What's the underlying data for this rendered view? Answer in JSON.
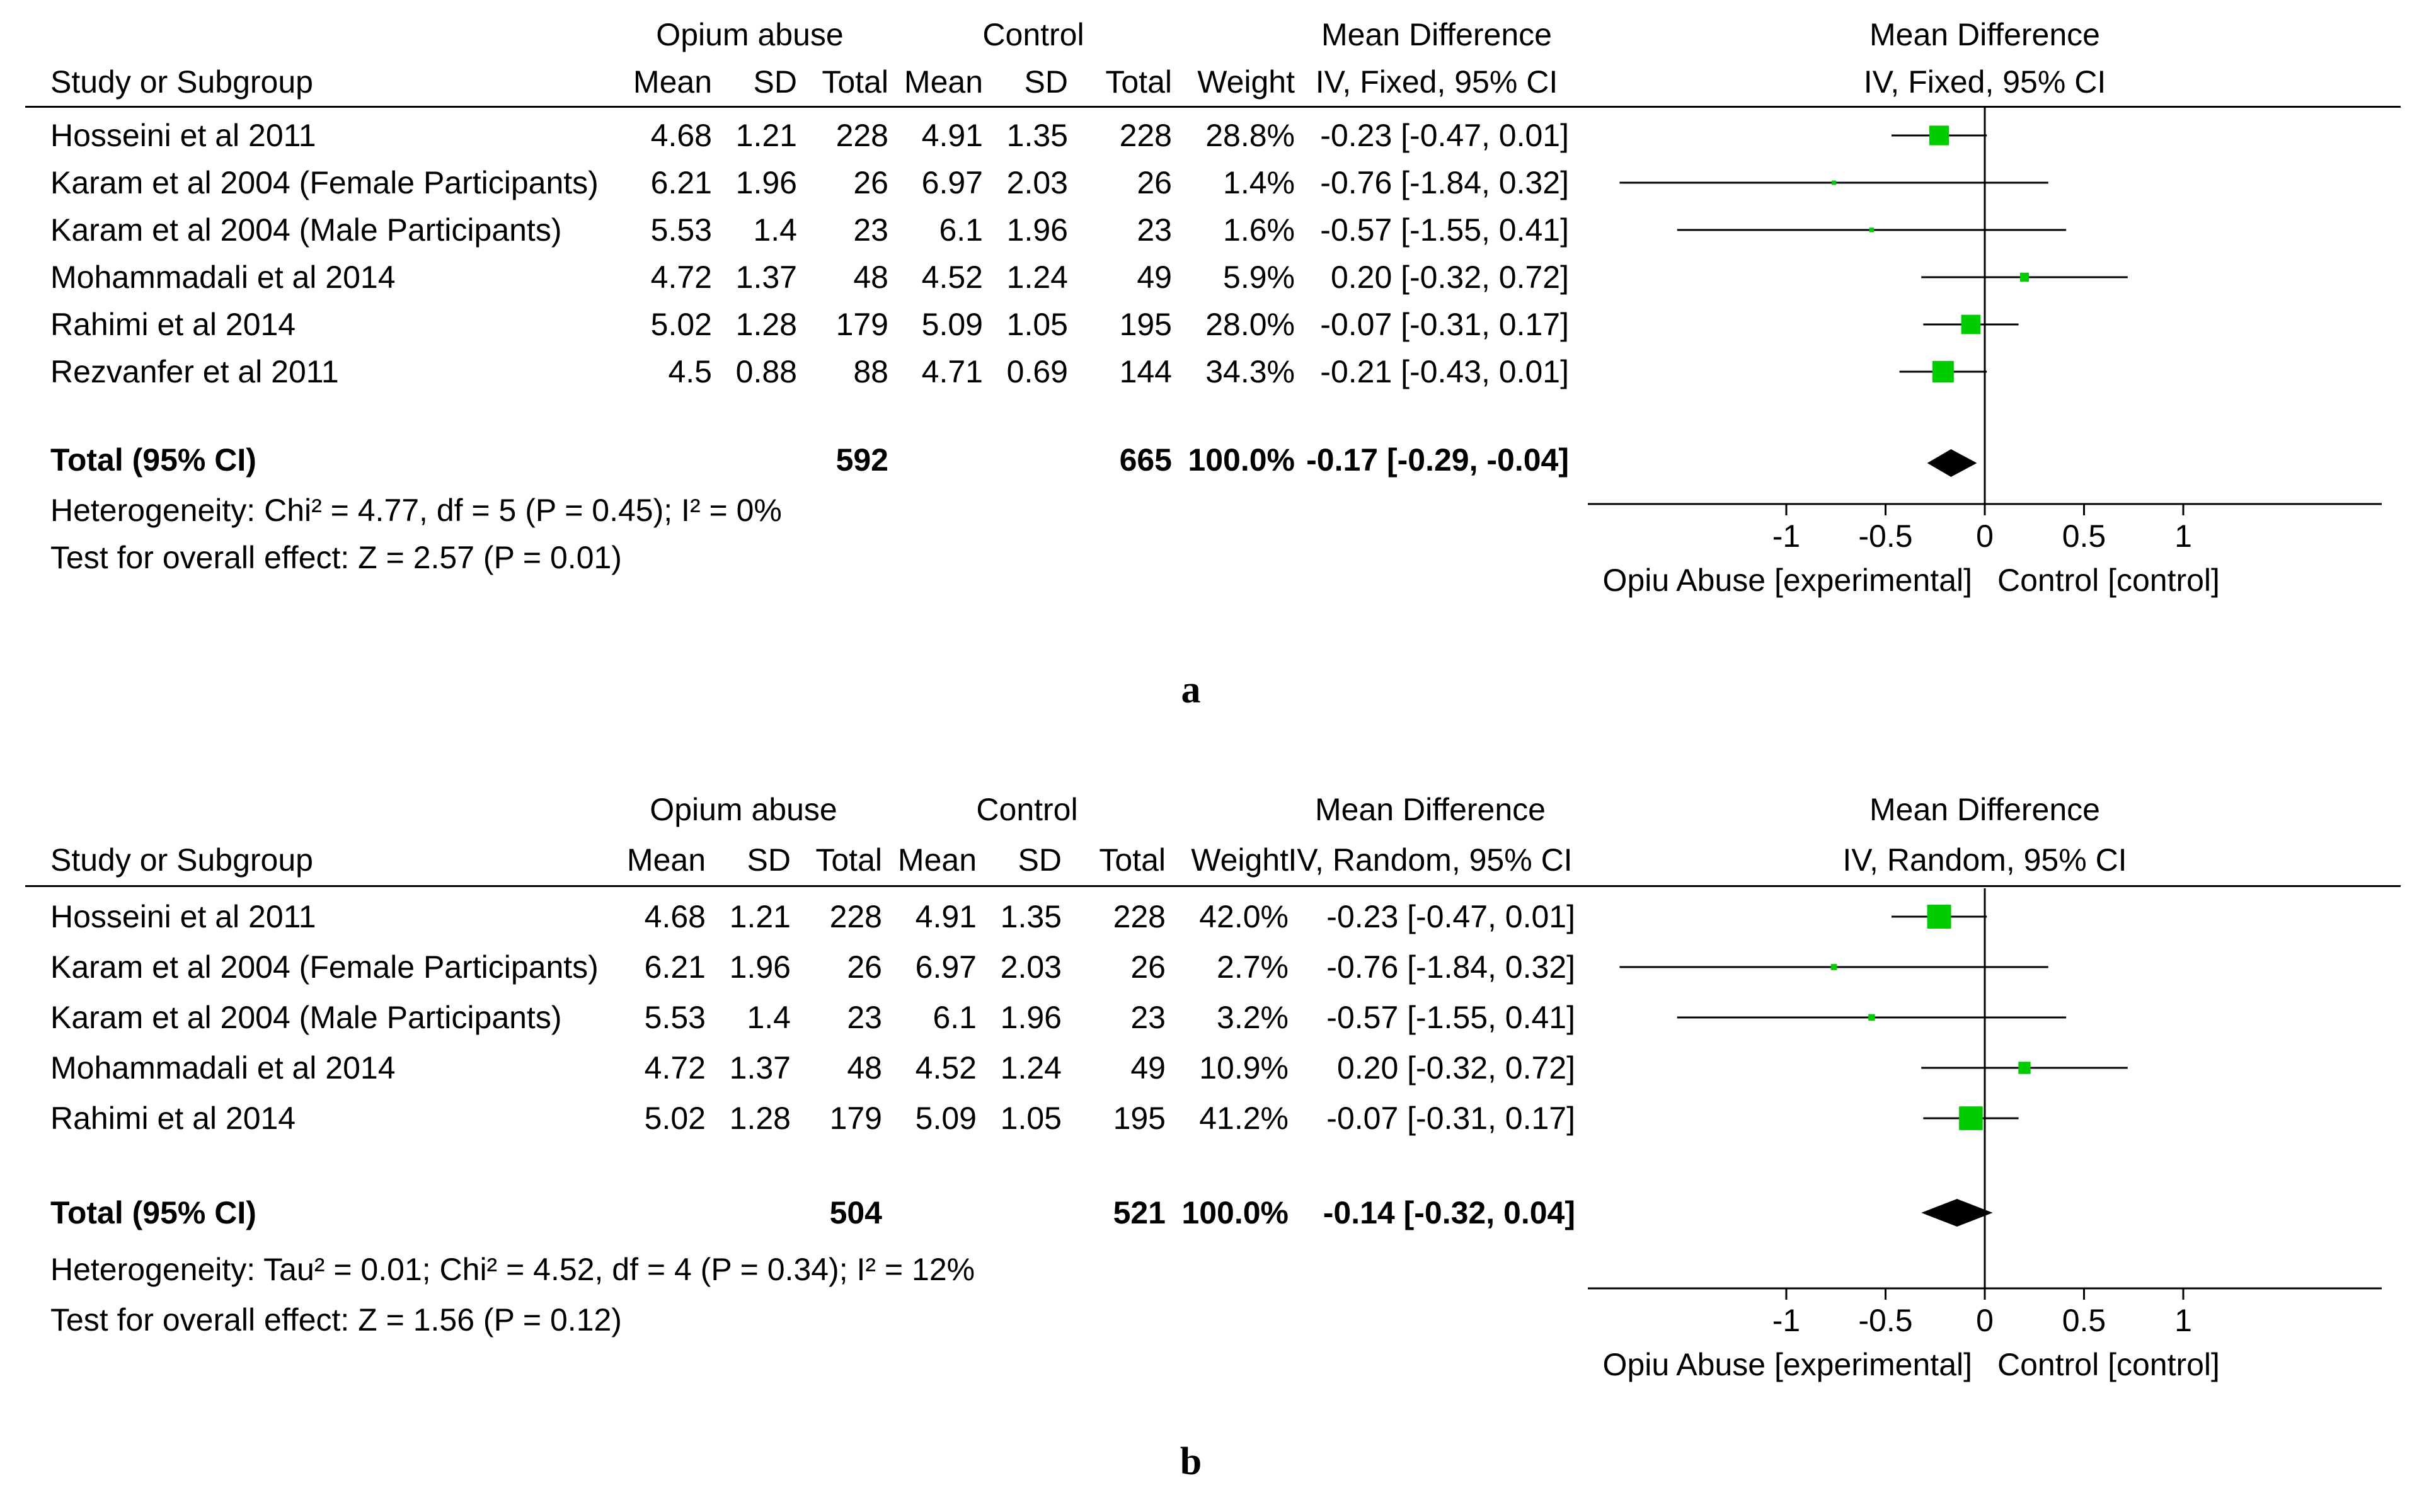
{
  "figure": {
    "panels": [
      {
        "id": "a",
        "caption": "a",
        "headers": {
          "group1": "Opium abuse",
          "group2": "Control",
          "study_col": "Study or Subgroup",
          "mean": "Mean",
          "sd": "SD",
          "total": "Total",
          "weight": "Weight",
          "md_title": "Mean Difference",
          "md_method": "IV, Fixed, 95% CI",
          "plot_title": "Mean Difference",
          "plot_method": "IV, Fixed, 95% CI"
        },
        "rows": [
          {
            "study": "Hosseini et al 2011",
            "m1": "4.68",
            "sd1": "1.21",
            "n1": "228",
            "m2": "4.91",
            "sd2": "1.35",
            "n2": "228",
            "weight": "28.8%",
            "ci_text": "-0.23 [-0.47, 0.01]"
          },
          {
            "study": "Karam et al 2004 (Female Participants)",
            "m1": "6.21",
            "sd1": "1.96",
            "n1": "26",
            "m2": "6.97",
            "sd2": "2.03",
            "n2": "26",
            "weight": "1.4%",
            "ci_text": "-0.76 [-1.84, 0.32]"
          },
          {
            "study": "Karam et al 2004 (Male Participants)",
            "m1": "5.53",
            "sd1": "1.4",
            "n1": "23",
            "m2": "6.1",
            "sd2": "1.96",
            "n2": "23",
            "weight": "1.6%",
            "ci_text": "-0.57 [-1.55, 0.41]"
          },
          {
            "study": "Mohammadali et al 2014",
            "m1": "4.72",
            "sd1": "1.37",
            "n1": "48",
            "m2": "4.52",
            "sd2": "1.24",
            "n2": "49",
            "weight": "5.9%",
            "ci_text": "0.20 [-0.32, 0.72]"
          },
          {
            "study": "Rahimi et al 2014",
            "m1": "5.02",
            "sd1": "1.28",
            "n1": "179",
            "m2": "5.09",
            "sd2": "1.05",
            "n2": "195",
            "weight": "28.0%",
            "ci_text": "-0.07 [-0.31, 0.17]"
          },
          {
            "study": "Rezvanfer et al 2011",
            "m1": "4.5",
            "sd1": "0.88",
            "n1": "88",
            "m2": "4.71",
            "sd2": "0.69",
            "n2": "144",
            "weight": "34.3%",
            "ci_text": "-0.21 [-0.43, 0.01]"
          }
        ],
        "total": {
          "label": "Total (95% CI)",
          "n1": "592",
          "n2": "665",
          "weight": "100.0%",
          "ci_text": "-0.17 [-0.29, -0.04]"
        },
        "heterogeneity": "Heterogeneity: Chi² = 4.77, df = 5 (P = 0.45); I² = 0%",
        "overall_effect": "Test for overall effect: Z = 2.57 (P = 0.01)",
        "axis_left_label": "Opiu Abuse [experimental]",
        "axis_right_label": "Control [control]"
      },
      {
        "id": "b",
        "caption": "b",
        "headers": {
          "group1": "Opium abuse",
          "group2": "Control",
          "study_col": "Study or Subgroup",
          "mean": "Mean",
          "sd": "SD",
          "total": "Total",
          "weight": "Weight",
          "md_title": "Mean Difference",
          "md_method": "IV, Random, 95% CI",
          "plot_title": "Mean Difference",
          "plot_method": "IV, Random, 95% CI"
        },
        "rows": [
          {
            "study": "Hosseini et al 2011",
            "m1": "4.68",
            "sd1": "1.21",
            "n1": "228",
            "m2": "4.91",
            "sd2": "1.35",
            "n2": "228",
            "weight": "42.0%",
            "ci_text": "-0.23 [-0.47, 0.01]"
          },
          {
            "study": "Karam et al 2004 (Female Participants)",
            "m1": "6.21",
            "sd1": "1.96",
            "n1": "26",
            "m2": "6.97",
            "sd2": "2.03",
            "n2": "26",
            "weight": "2.7%",
            "ci_text": "-0.76 [-1.84, 0.32]"
          },
          {
            "study": "Karam et al 2004 (Male Participants)",
            "m1": "5.53",
            "sd1": "1.4",
            "n1": "23",
            "m2": "6.1",
            "sd2": "1.96",
            "n2": "23",
            "weight": "3.2%",
            "ci_text": "-0.57 [-1.55, 0.41]"
          },
          {
            "study": "Mohammadali et al 2014",
            "m1": "4.72",
            "sd1": "1.37",
            "n1": "48",
            "m2": "4.52",
            "sd2": "1.24",
            "n2": "49",
            "weight": "10.9%",
            "ci_text": "0.20 [-0.32, 0.72]"
          },
          {
            "study": "Rahimi et al 2014",
            "m1": "5.02",
            "sd1": "1.28",
            "n1": "179",
            "m2": "5.09",
            "sd2": "1.05",
            "n2": "195",
            "weight": "41.2%",
            "ci_text": "-0.07 [-0.31, 0.17]"
          }
        ],
        "total": {
          "label": "Total (95% CI)",
          "n1": "504",
          "n2": "521",
          "weight": "100.0%",
          "ci_text": "-0.14 [-0.32, 0.04]"
        },
        "heterogeneity": "Heterogeneity: Tau² = 0.01; Chi² = 4.52, df = 4 (P = 0.34); I² = 12%",
        "overall_effect": "Test for overall effect: Z = 1.56 (P = 0.12)",
        "axis_left_label": "Opiu Abuse [experimental]",
        "axis_right_label": "Control [control]"
      }
    ]
  },
  "chart_data": [
    {
      "type": "forest",
      "title": "Mean Difference IV, Fixed, 95% CI",
      "xlim": [
        -2,
        2
      ],
      "xticks": [
        -1,
        -0.5,
        0,
        0.5,
        1
      ],
      "xtick_labels": [
        "-1",
        "-0.5",
        "0",
        "0.5",
        "1"
      ],
      "xlabel_left": "Opiu Abuse [experimental]",
      "xlabel_right": "Control [control]",
      "marker_color": "#00cc00",
      "studies": [
        {
          "name": "Hosseini et al 2011",
          "md": -0.23,
          "lo": -0.47,
          "hi": 0.01,
          "weight": 28.8
        },
        {
          "name": "Karam et al 2004 (Female Participants)",
          "md": -0.76,
          "lo": -1.84,
          "hi": 0.32,
          "weight": 1.4
        },
        {
          "name": "Karam et al 2004 (Male Participants)",
          "md": -0.57,
          "lo": -1.55,
          "hi": 0.41,
          "weight": 1.6
        },
        {
          "name": "Mohammadali et al 2014",
          "md": 0.2,
          "lo": -0.32,
          "hi": 0.72,
          "weight": 5.9
        },
        {
          "name": "Rahimi et al 2014",
          "md": -0.07,
          "lo": -0.31,
          "hi": 0.17,
          "weight": 28.0
        },
        {
          "name": "Rezvanfer et al 2011",
          "md": -0.21,
          "lo": -0.43,
          "hi": 0.01,
          "weight": 34.3
        }
      ],
      "pooled": {
        "md": -0.17,
        "lo": -0.29,
        "hi": -0.04
      }
    },
    {
      "type": "forest",
      "title": "Mean Difference IV, Random, 95% CI",
      "xlim": [
        -2,
        2
      ],
      "xticks": [
        -1,
        -0.5,
        0,
        0.5,
        1
      ],
      "xtick_labels": [
        "-1",
        "-0.5",
        "0",
        "0.5",
        "1"
      ],
      "xlabel_left": "Opiu Abuse [experimental]",
      "xlabel_right": "Control [control]",
      "marker_color": "#00cc00",
      "studies": [
        {
          "name": "Hosseini et al 2011",
          "md": -0.23,
          "lo": -0.47,
          "hi": 0.01,
          "weight": 42.0
        },
        {
          "name": "Karam et al 2004 (Female Participants)",
          "md": -0.76,
          "lo": -1.84,
          "hi": 0.32,
          "weight": 2.7
        },
        {
          "name": "Karam et al 2004 (Male Participants)",
          "md": -0.57,
          "lo": -1.55,
          "hi": 0.41,
          "weight": 3.2
        },
        {
          "name": "Mohammadali et al 2014",
          "md": 0.2,
          "lo": -0.32,
          "hi": 0.72,
          "weight": 10.9
        },
        {
          "name": "Rahimi et al 2014",
          "md": -0.07,
          "lo": -0.31,
          "hi": 0.17,
          "weight": 41.2
        }
      ],
      "pooled": {
        "md": -0.14,
        "lo": -0.32,
        "hi": 0.04
      }
    }
  ]
}
